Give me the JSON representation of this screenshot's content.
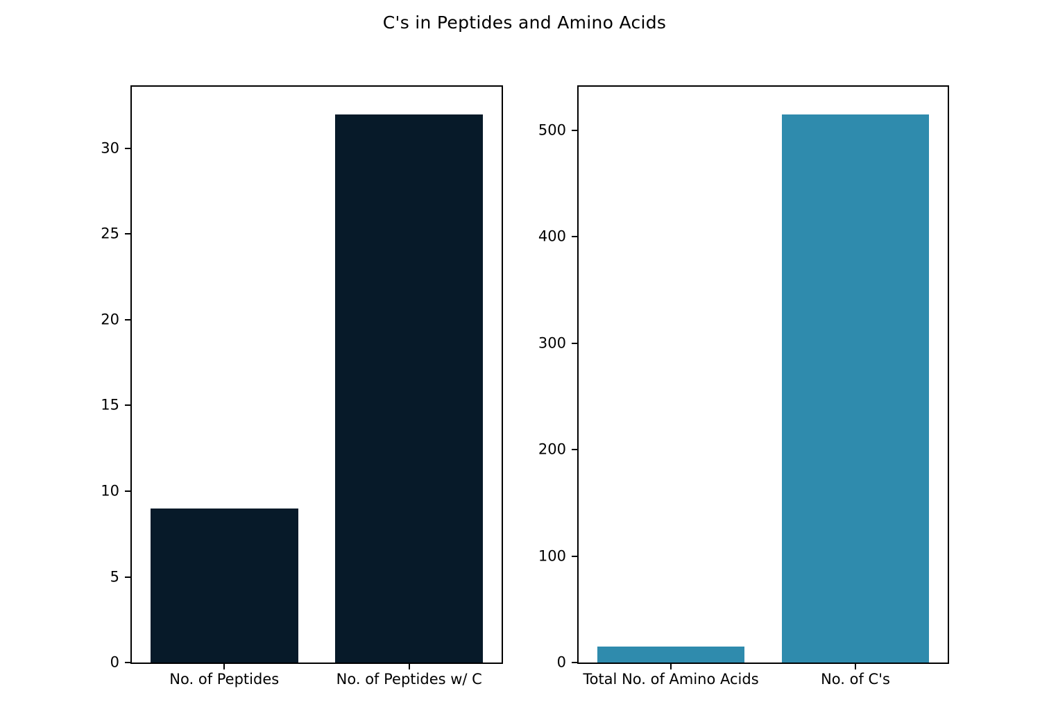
{
  "figure": {
    "title": "C's in Peptides and Amino Acids",
    "background_color": "#ffffff",
    "spine_color": "#000000",
    "text_color": "#000000"
  },
  "chart_data": [
    {
      "type": "bar",
      "title": "",
      "categories": [
        "No. of Peptides",
        "No. of Peptides w/ C"
      ],
      "values": [
        9,
        32
      ],
      "bar_color": "#071a29",
      "yticks": [
        0,
        5,
        10,
        15,
        20,
        25,
        30
      ],
      "ylim": [
        0,
        33.6
      ],
      "xlabel": "",
      "ylabel": "",
      "grid": false,
      "legend": "none"
    },
    {
      "type": "bar",
      "title": "",
      "categories": [
        "Total No. of Amino Acids",
        "No. of C's"
      ],
      "values": [
        15,
        515
      ],
      "bar_color": "#2f8bad",
      "yticks": [
        0,
        100,
        200,
        300,
        400,
        500
      ],
      "ylim": [
        0,
        540.75
      ],
      "xlabel": "",
      "ylabel": "",
      "grid": false,
      "legend": "none"
    }
  ]
}
